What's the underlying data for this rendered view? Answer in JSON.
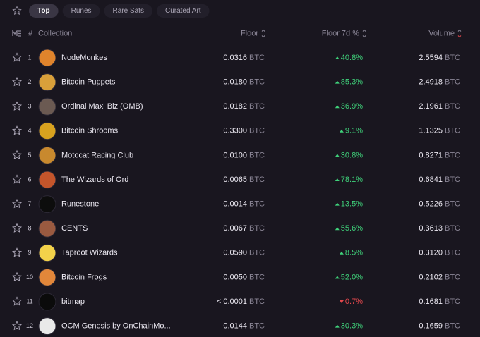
{
  "tabs": [
    "Top",
    "Runes",
    "Rare Sats",
    "Curated Art"
  ],
  "active_tab": 0,
  "header": {
    "rank": "#",
    "collection": "Collection",
    "floor": "Floor",
    "floor_change": "Floor 7d %",
    "volume": "Volume"
  },
  "unit": "BTC",
  "rows": [
    {
      "rank": "1",
      "name": "NodeMonkes",
      "floor": "0.0316",
      "change": "40.8%",
      "trend": "up",
      "volume": "2.5594"
    },
    {
      "rank": "2",
      "name": "Bitcoin Puppets",
      "floor": "0.0180",
      "change": "85.3%",
      "trend": "up",
      "volume": "2.4918"
    },
    {
      "rank": "3",
      "name": "Ordinal Maxi Biz (OMB)",
      "floor": "0.0182",
      "change": "36.9%",
      "trend": "up",
      "volume": "2.1961"
    },
    {
      "rank": "4",
      "name": "Bitcoin Shrooms",
      "floor": "0.3300",
      "change": "9.1%",
      "trend": "up",
      "volume": "1.1325"
    },
    {
      "rank": "5",
      "name": "Motocat Racing Club",
      "floor": "0.0100",
      "change": "30.8%",
      "trend": "up",
      "volume": "0.8271"
    },
    {
      "rank": "6",
      "name": "The Wizards of Ord",
      "floor": "0.0065",
      "change": "78.1%",
      "trend": "up",
      "volume": "0.6841"
    },
    {
      "rank": "7",
      "name": "Runestone",
      "floor": "0.0014",
      "change": "13.5%",
      "trend": "up",
      "volume": "0.5226"
    },
    {
      "rank": "8",
      "name": "CENTS",
      "floor": "0.0067",
      "change": "55.6%",
      "trend": "up",
      "volume": "0.3613"
    },
    {
      "rank": "9",
      "name": "Taproot Wizards",
      "floor": "0.0590",
      "change": "8.5%",
      "trend": "up",
      "volume": "0.3120"
    },
    {
      "rank": "10",
      "name": "Bitcoin Frogs",
      "floor": "0.0050",
      "change": "52.0%",
      "trend": "up",
      "volume": "0.2102"
    },
    {
      "rank": "11",
      "name": "bitmap",
      "floor": "< 0.0001",
      "change": "0.7%",
      "trend": "down",
      "volume": "0.1681"
    },
    {
      "rank": "12",
      "name": "OCM Genesis by OnChainMo...",
      "floor": "0.0144",
      "change": "30.3%",
      "trend": "up",
      "volume": "0.1659"
    }
  ]
}
